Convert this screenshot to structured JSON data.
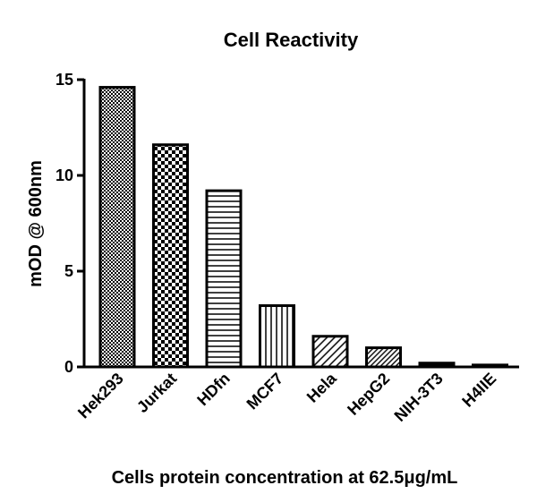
{
  "chart_data": {
    "type": "bar",
    "title": "Cell Reactivity",
    "xlabel": "Cells protein concentration at 62.5μg/mL",
    "ylabel": "mOD @ 600nm",
    "categories": [
      "Hek293",
      "Jurkat",
      "HDfn",
      "MCF7",
      "Hela",
      "HepG2",
      "NIH-3T3",
      "H4IIE"
    ],
    "values": [
      14.6,
      11.6,
      9.2,
      3.2,
      1.6,
      1.0,
      0.2,
      0.1
    ],
    "ylim": [
      0,
      15
    ],
    "yticks": [
      "0",
      "5",
      "10",
      "15"
    ],
    "grid": false,
    "legend": "none",
    "bar_patterns": [
      "fine-check",
      "coarse-check",
      "horizontal-lines",
      "vertical-lines",
      "diagonal-lines",
      "diagonal-lines-dense",
      "solid",
      "solid"
    ],
    "colors": {
      "stroke": "#000000",
      "fill": "#ffffff"
    }
  }
}
